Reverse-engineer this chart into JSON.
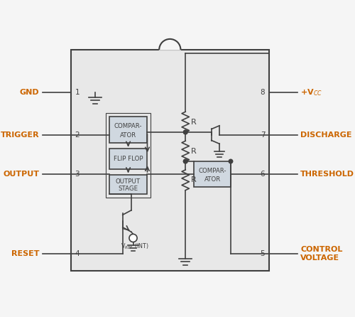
{
  "bg_color": "#f5f5f5",
  "chip_color": "#e8e8e8",
  "line_color": "#404040",
  "box_color": "#d0d0d0",
  "orange_color": "#cc6600",
  "pin_numbers_left": [
    "1",
    "2",
    "3",
    "4"
  ],
  "pin_numbers_right": [
    "8",
    "7",
    "6",
    "5"
  ],
  "pin_labels_left": [
    "GND",
    "TRIGGER",
    "OUTPUT",
    "RESET"
  ],
  "pin_labels_right": [
    "+V$_{CC}$",
    "DISCHARGE",
    "THRESHOLD",
    "CONTROL\nVOLTAGE"
  ]
}
